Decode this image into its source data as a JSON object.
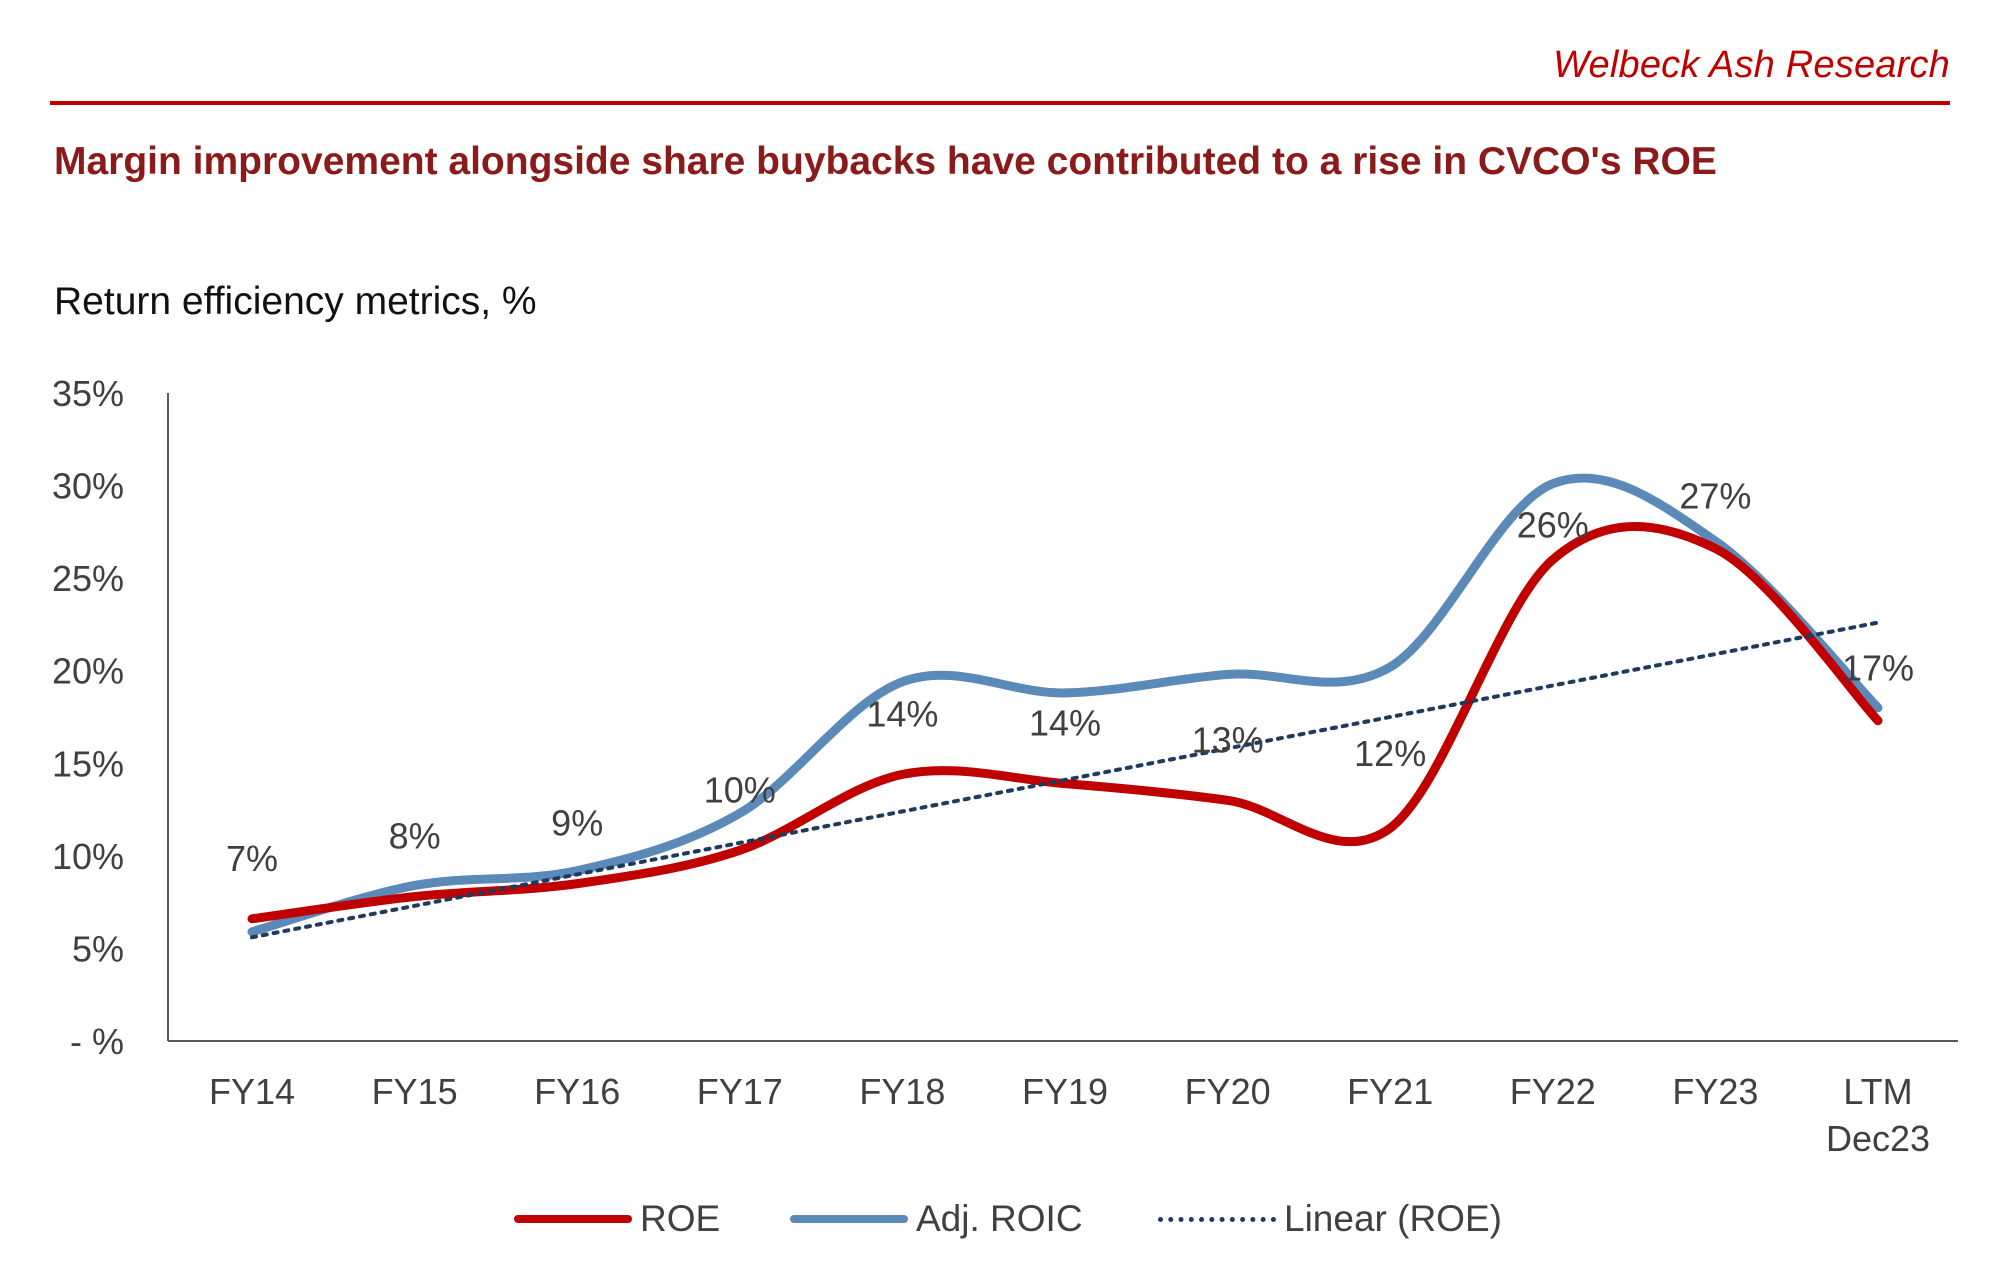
{
  "header": {
    "brand": "Welbeck Ash Research",
    "title": "Margin improvement alongside share buybacks have contributed to a rise in CVCO's ROE",
    "subtitle": "Return efficiency metrics, %"
  },
  "colors": {
    "accent": "#c00000",
    "title": "#8b1a1a",
    "roe": "#c00000",
    "roic": "#5b89b8",
    "trend": "#1f3a5f",
    "axis": "#595959"
  },
  "chart_data": {
    "type": "line",
    "title": "Return efficiency metrics, %",
    "categories": [
      "FY14",
      "FY15",
      "FY16",
      "FY17",
      "FY18",
      "FY19",
      "FY20",
      "FY21",
      "FY22",
      "FY23",
      "LTM Dec23"
    ],
    "category_lines": [
      [
        "FY14"
      ],
      [
        "FY15"
      ],
      [
        "FY16"
      ],
      [
        "FY17"
      ],
      [
        "FY18"
      ],
      [
        "FY19"
      ],
      [
        "FY20"
      ],
      [
        "FY21"
      ],
      [
        "FY22"
      ],
      [
        "FY23"
      ],
      [
        "LTM",
        "Dec23"
      ]
    ],
    "yticks": [
      0,
      5,
      10,
      15,
      20,
      25,
      30,
      35
    ],
    "ytick_labels": [
      "- %",
      "5%",
      "10%",
      "15%",
      "20%",
      "25%",
      "30%",
      "35%"
    ],
    "ylim": [
      0,
      35
    ],
    "series": [
      {
        "name": "ROE",
        "values": [
          6.6,
          7.8,
          8.5,
          10.3,
          14.4,
          13.9,
          13.0,
          11.5,
          26.0,
          26.6,
          17.3
        ],
        "labels": [
          "7%",
          "8%",
          "9%",
          "10%",
          "14%",
          "14%",
          "13%",
          "12%",
          "26%",
          "27%",
          "17%"
        ]
      },
      {
        "name": "Adj. ROIC",
        "values": [
          5.9,
          8.4,
          9.2,
          12.3,
          19.4,
          18.8,
          19.8,
          20.2,
          30.1,
          27.0,
          18.0
        ]
      },
      {
        "name": "Linear (ROE)",
        "values": [
          5.6,
          7.3,
          9.0,
          10.7,
          12.4,
          14.1,
          15.8,
          17.5,
          19.2,
          20.9,
          22.6
        ]
      }
    ],
    "legend": [
      "ROE",
      "Adj. ROIC",
      "Linear (ROE)"
    ],
    "legend_position": "bottom"
  }
}
